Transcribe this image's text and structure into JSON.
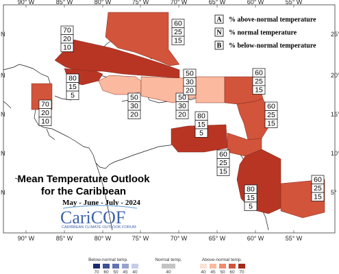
{
  "map": {
    "title_line1": "Mean Temperature Outlook",
    "title_line2": "for the Caribbean",
    "period": "May - June - July - 2024",
    "brand_name": "CariCOF",
    "brand_subtitle": "CARIBBEAN CLIMATE OUTLOOK FORUM",
    "lon_labels": [
      "90° W",
      "85° W",
      "80° W",
      "75° W",
      "70° W",
      "65° W",
      "60° W",
      "55° W"
    ],
    "lat_labels_left": [
      "N",
      "N",
      "N",
      "N",
      "N"
    ],
    "lat_labels_right": [
      "25°",
      "20°",
      "15°",
      "10°",
      "5°"
    ]
  },
  "legend": {
    "items": [
      {
        "letter": "A",
        "text": "% above-normal temperature"
      },
      {
        "letter": "N",
        "text": "% normal temperature"
      },
      {
        "letter": "B",
        "text": "% below-normal temperature"
      }
    ]
  },
  "regions": [
    {
      "id": "bahamas",
      "color": "#d2543b",
      "probs": [
        "60",
        "25",
        "15"
      ]
    },
    {
      "id": "cuba",
      "color": "#b83524",
      "probs": [
        "70",
        "20",
        "10"
      ]
    },
    {
      "id": "belize",
      "color": "#d2543b",
      "probs": [
        "70",
        "20",
        "10"
      ]
    },
    {
      "id": "cayman",
      "color": "#b83524",
      "probs": [
        "80",
        "15",
        "5"
      ]
    },
    {
      "id": "jamaica",
      "color": "#fbb99f",
      "probs": [
        "50",
        "30",
        "20"
      ]
    },
    {
      "id": "hispaniola",
      "color": "#fbb99f",
      "probs": [
        "50",
        "30",
        "20"
      ]
    },
    {
      "id": "puerto-rico",
      "color": "#fbb99f",
      "probs": [
        "50",
        "30",
        "20"
      ]
    },
    {
      "id": "leeward",
      "color": "#d2543b",
      "probs": [
        "60",
        "25",
        "15"
      ]
    },
    {
      "id": "windward",
      "color": "#d2543b",
      "probs": [
        "60",
        "25",
        "15"
      ]
    },
    {
      "id": "abc-islands",
      "color": "#b83524",
      "probs": [
        "80",
        "15",
        "5"
      ]
    },
    {
      "id": "trinidad",
      "color": "#d2543b",
      "probs": [
        "60",
        "25",
        "15"
      ]
    },
    {
      "id": "guyana",
      "color": "#b83524",
      "probs": [
        "80",
        "15",
        "5"
      ]
    },
    {
      "id": "suriname",
      "color": "#d2543b",
      "probs": [
        "60",
        "25",
        "15"
      ]
    }
  ],
  "scale": {
    "below_title": "Below-normal temp.",
    "normal_title": "Normal temp.",
    "above_title": "Above-normal temp.",
    "below_ticks": [
      "70",
      "60",
      "50",
      "45",
      "40"
    ],
    "normal_ticks": [
      "40"
    ],
    "above_ticks": [
      "40",
      "45",
      "50",
      "60",
      "70"
    ],
    "below_colors": [
      "#1a2a6c",
      "#3d4f95",
      "#6474b3",
      "#96a3cf",
      "#c7cde6"
    ],
    "normal_color": "#c4c4c4",
    "above_colors": [
      "#fde0d3",
      "#fbb99f",
      "#f08a6a",
      "#d2543b",
      "#a42b1c"
    ]
  }
}
